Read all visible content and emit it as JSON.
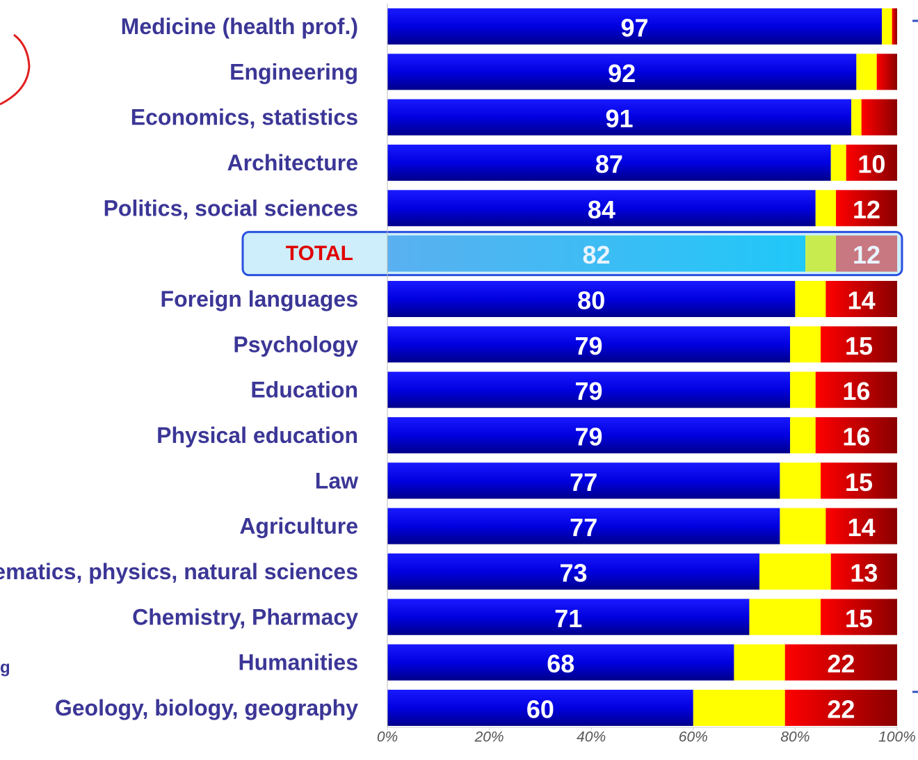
{
  "chart_data": {
    "type": "stacked_barh",
    "categories": [
      "Medicine (health prof.)",
      "Engineering",
      "Economics, statistics",
      "Architecture",
      "Politics, social sciences",
      "TOTAL",
      "Foreign languages",
      "Psychology",
      "Education",
      "Physical education",
      "Law",
      "Agriculture",
      "Mathematics, physics, natural sciences",
      "Chemistry, Pharmacy",
      "Humanities",
      "Geology, biology, geography"
    ],
    "series": [
      {
        "color": "#0000e0",
        "values": [
          97,
          92,
          91,
          87,
          84,
          82,
          80,
          79,
          79,
          79,
          77,
          77,
          73,
          71,
          68,
          60
        ]
      },
      {
        "color": "#ffff00",
        "values": [
          2,
          4,
          2,
          3,
          4,
          6,
          6,
          6,
          5,
          5,
          8,
          9,
          14,
          14,
          10,
          18
        ]
      },
      {
        "color": "#e00000",
        "values": [
          1,
          4,
          7,
          10,
          12,
          12,
          14,
          15,
          16,
          16,
          15,
          14,
          13,
          15,
          22,
          22
        ],
        "value_labels": [
          null,
          null,
          null,
          "10",
          "12",
          "12",
          "14",
          "15",
          "16",
          "16",
          "15",
          "14",
          "13",
          "15",
          "22",
          "22"
        ]
      }
    ],
    "highlight_index": 5,
    "xlim": [
      0,
      100
    ],
    "xticks": [
      {
        "value": 0,
        "label": "0%"
      },
      {
        "value": 20,
        "label": "20%"
      },
      {
        "value": 40,
        "label": "40%"
      },
      {
        "value": 60,
        "label": "60%"
      },
      {
        "value": 80,
        "label": "80%"
      },
      {
        "value": 100,
        "label": "100%"
      }
    ],
    "annotations": [
      "g"
    ]
  }
}
